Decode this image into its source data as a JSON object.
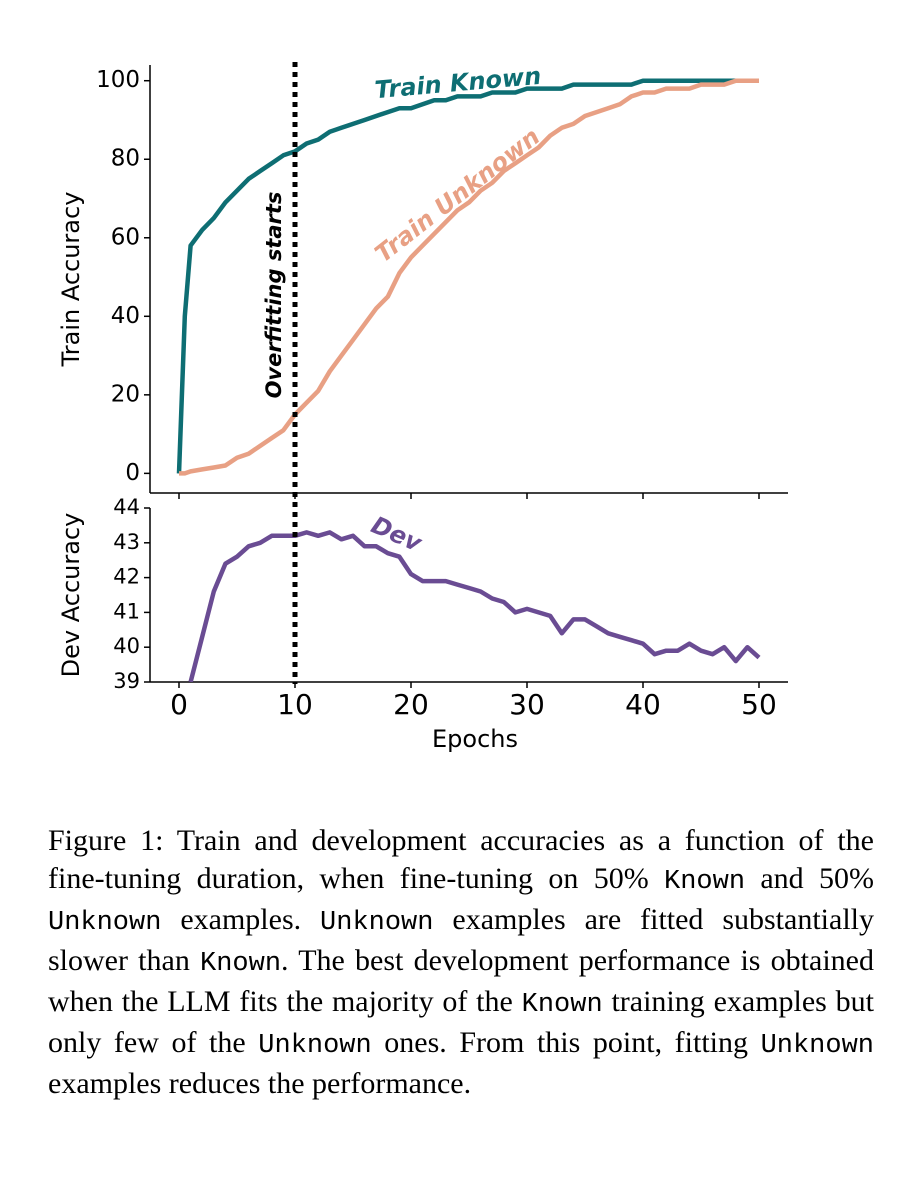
{
  "chart_data": [
    {
      "type": "line",
      "ylabel": "Train Accuracy",
      "x": [
        0,
        0.5,
        1,
        2,
        3,
        4,
        5,
        6,
        7,
        8,
        9,
        10,
        11,
        12,
        13,
        14,
        15,
        16,
        17,
        18,
        19,
        20,
        21,
        22,
        23,
        24,
        25,
        26,
        27,
        28,
        29,
        30,
        31,
        32,
        33,
        34,
        35,
        36,
        37,
        38,
        39,
        40,
        41,
        42,
        43,
        44,
        45,
        46,
        47,
        48,
        49,
        50
      ],
      "series": [
        {
          "name": "Train Known",
          "color": "#0e6e73",
          "values": [
            0,
            40,
            58,
            62,
            65,
            69,
            72,
            75,
            77,
            79,
            81,
            82,
            84,
            85,
            87,
            88,
            89,
            90,
            91,
            92,
            93,
            93,
            94,
            95,
            95,
            96,
            96,
            96,
            97,
            97,
            97,
            98,
            98,
            98,
            98,
            99,
            99,
            99,
            99,
            99,
            99,
            100,
            100,
            100,
            100,
            100,
            100,
            100,
            100,
            100,
            100,
            100
          ]
        },
        {
          "name": "Train Unknown",
          "color": "#e8a084",
          "values": [
            0,
            0,
            0.5,
            1,
            1.5,
            2,
            4,
            5,
            7,
            9,
            11,
            15,
            18,
            21,
            26,
            30,
            34,
            38,
            42,
            45,
            51,
            55,
            58,
            61,
            64,
            67,
            69,
            72,
            74,
            77,
            79,
            81,
            83,
            86,
            88,
            89,
            91,
            92,
            93,
            94,
            96,
            97,
            97,
            98,
            98,
            98,
            99,
            99,
            99,
            100,
            100,
            100
          ]
        }
      ],
      "xlim": [
        -2.5,
        52.5
      ],
      "ylim": [
        -5,
        104
      ],
      "yticks": [
        0,
        20,
        40,
        60,
        80,
        100
      ],
      "annotations": [
        {
          "text": "Overfitting starts",
          "x": 10
        }
      ]
    },
    {
      "type": "line",
      "xlabel": "Epochs",
      "ylabel": "Dev Accuracy",
      "x": [
        1,
        2,
        3,
        4,
        5,
        6,
        7,
        8,
        9,
        10,
        11,
        12,
        13,
        14,
        15,
        16,
        17,
        18,
        19,
        20,
        21,
        22,
        23,
        24,
        25,
        26,
        27,
        28,
        29,
        30,
        31,
        32,
        33,
        34,
        35,
        36,
        37,
        38,
        39,
        40,
        41,
        42,
        43,
        44,
        45,
        46,
        47,
        48,
        49,
        50
      ],
      "series": [
        {
          "name": "Dev",
          "color": "#6a4c93",
          "values": [
            39.0,
            40.3,
            41.6,
            42.4,
            42.6,
            42.9,
            43.0,
            43.2,
            43.2,
            43.2,
            43.3,
            43.2,
            43.3,
            43.1,
            43.2,
            42.9,
            42.9,
            42.7,
            42.6,
            42.1,
            41.9,
            41.9,
            41.9,
            41.8,
            41.7,
            41.6,
            41.4,
            41.3,
            41.0,
            41.1,
            41.0,
            40.9,
            40.4,
            40.8,
            40.8,
            40.6,
            40.4,
            40.3,
            40.2,
            40.1,
            39.8,
            39.9,
            39.9,
            40.1,
            39.9,
            39.8,
            40.0,
            39.6,
            40.0,
            39.7
          ]
        }
      ],
      "xlim": [
        -2.5,
        52.5
      ],
      "ylim": [
        39,
        44
      ],
      "xticks": [
        0,
        10,
        20,
        30,
        40,
        50
      ],
      "yticks": [
        39,
        40,
        41,
        42,
        43,
        44
      ]
    }
  ],
  "caption": {
    "parts": [
      "Figure 1: Train and development accuracies as a function of the fine-tuning duration, when fine-tuning on 50% ",
      "Known",
      " and 50% ",
      "Unknown",
      " examples. ",
      "Unknown",
      " examples are fitted substantially slower than ",
      "Known",
      ". The best development performance is obtained when the LLM fits the majority of the ",
      "Known",
      " training examples but only few of the ",
      "Unknown",
      " ones. From this point, fitting ",
      "Unknown",
      " examples reduces the performance."
    ]
  }
}
